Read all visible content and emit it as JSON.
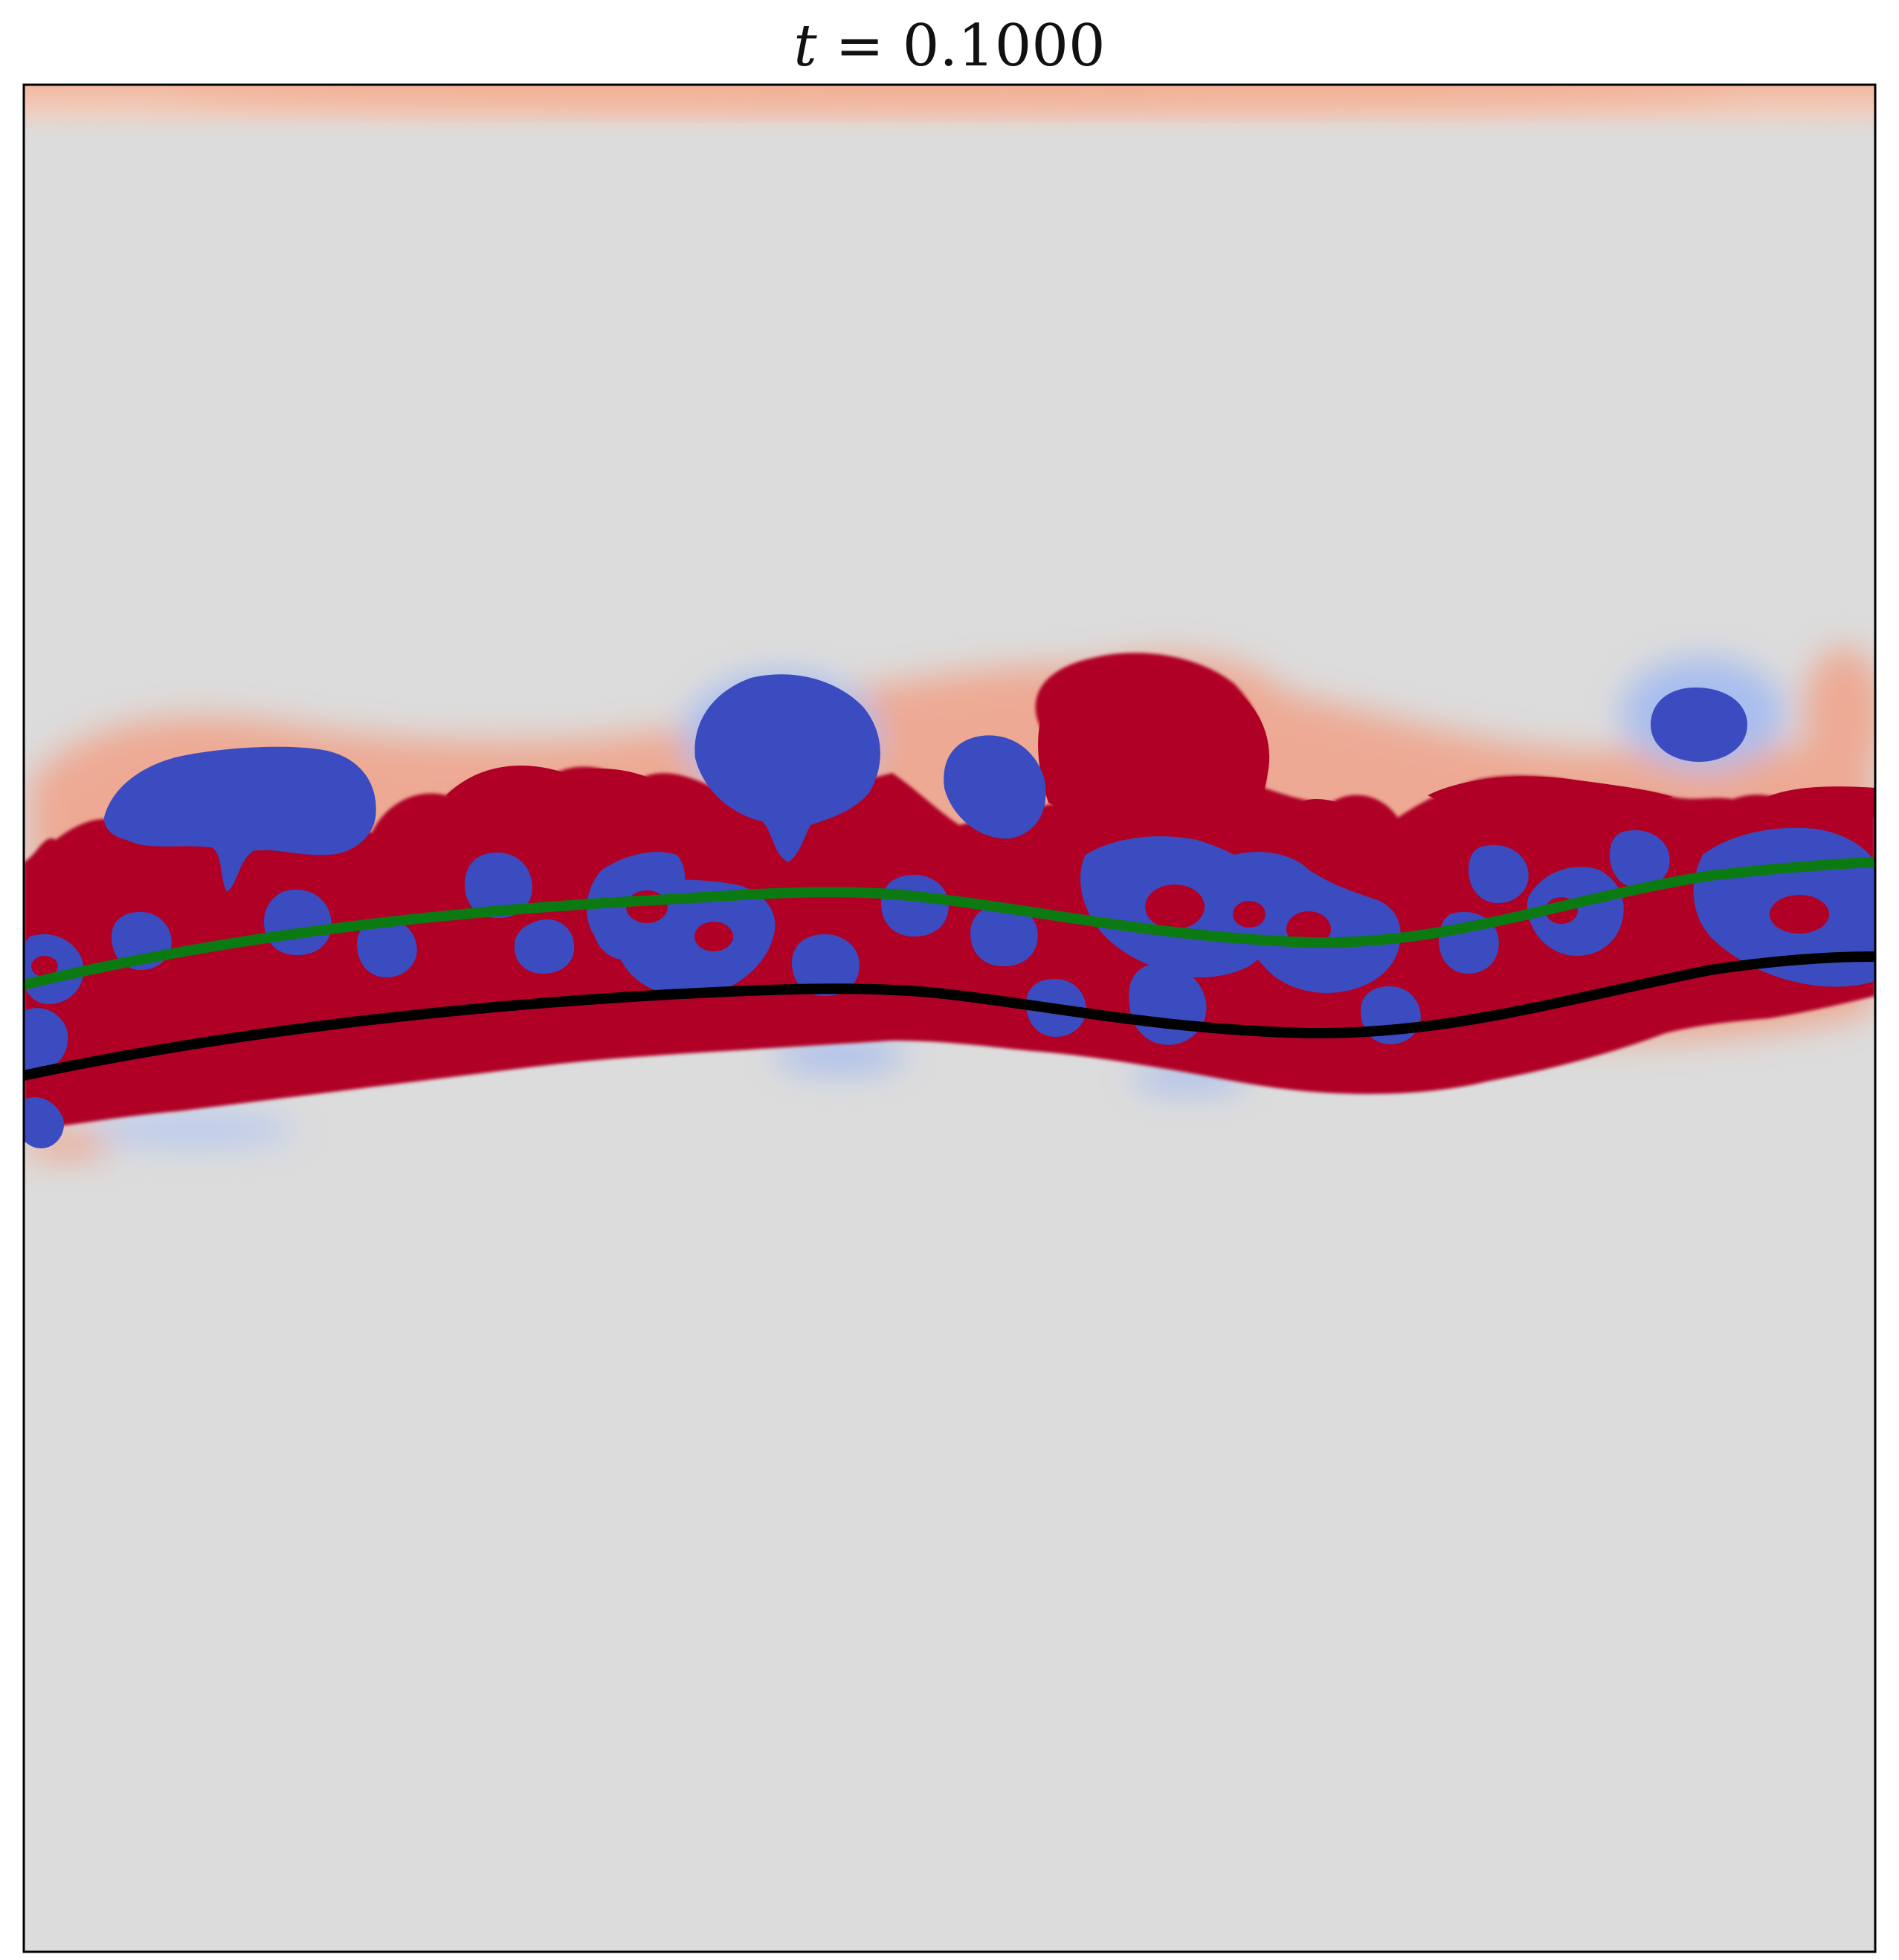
{
  "title": {
    "variable": "t",
    "operator": " = ",
    "value": "0.1000"
  },
  "colors": {
    "background": "#dcdcdc",
    "positive": "#b00026",
    "negative": "#3b4cc0",
    "curve_upper": "#0b7a12",
    "curve_lower": "#000000",
    "frame": "#000000"
  }
}
